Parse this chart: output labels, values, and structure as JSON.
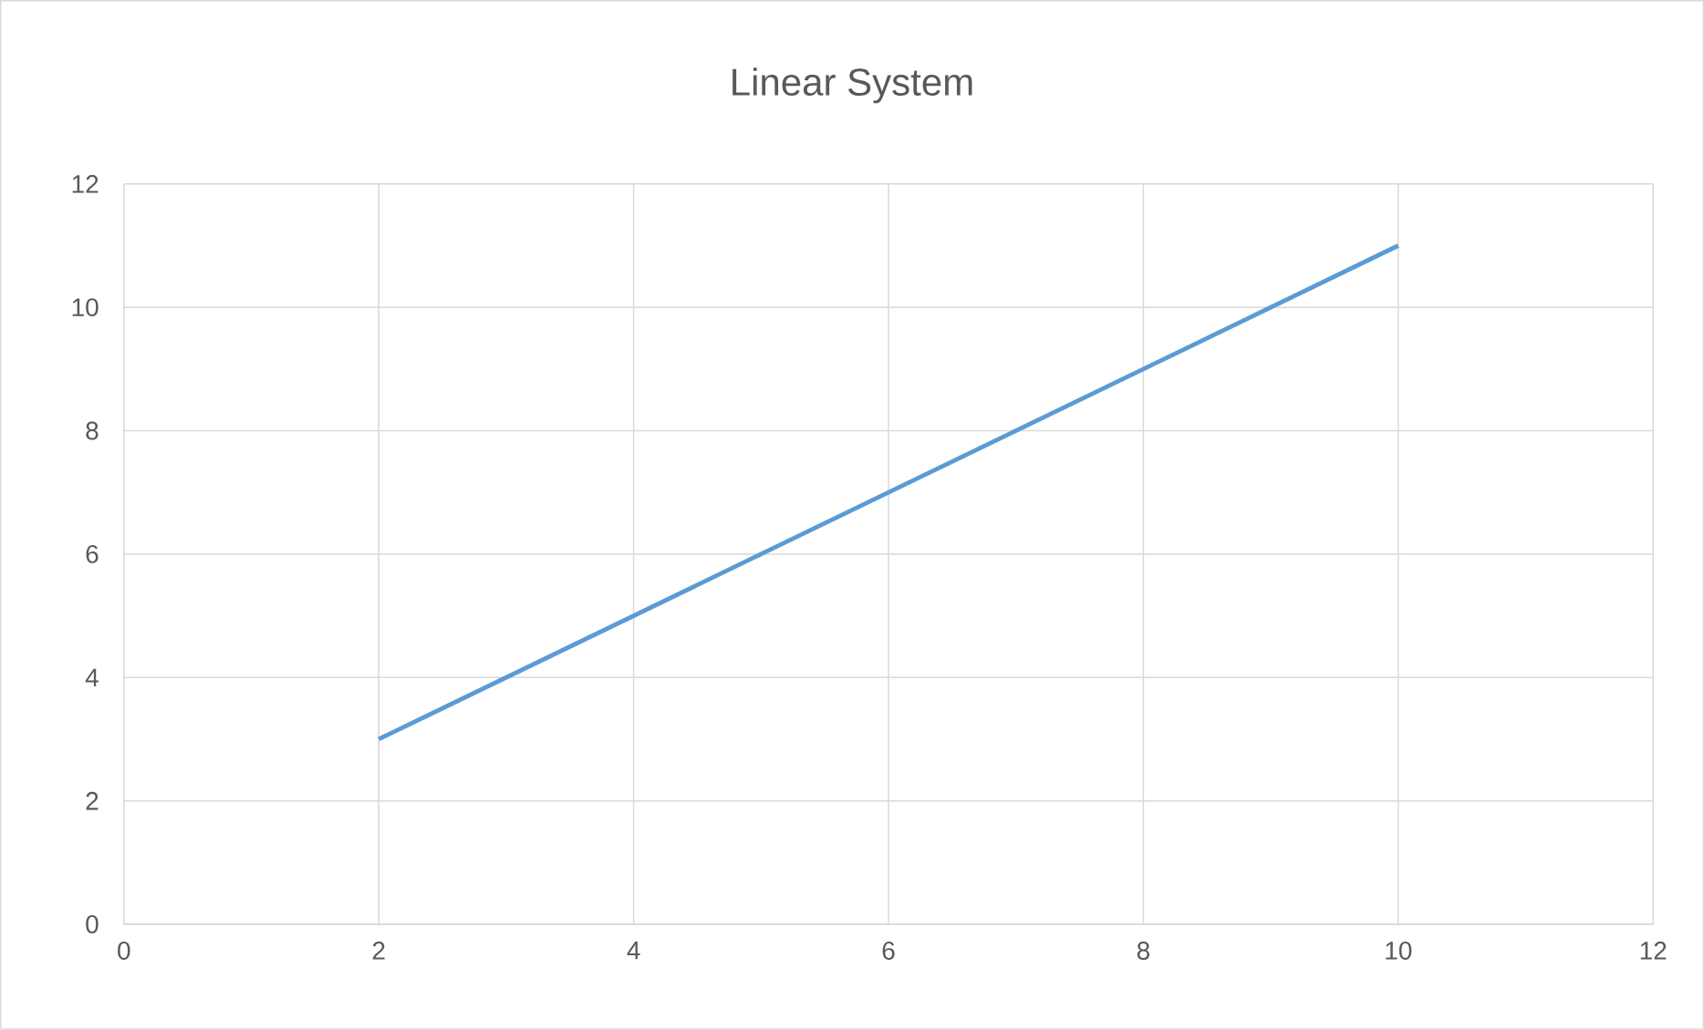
{
  "chart_data": {
    "type": "line",
    "title": "Linear System",
    "x": [
      2,
      10
    ],
    "series": [
      {
        "color": "#5b9bd5",
        "values": [
          3,
          11
        ]
      }
    ],
    "xlim": [
      0,
      12
    ],
    "ylim": [
      0,
      12
    ],
    "xticks": [
      0,
      2,
      4,
      6,
      8,
      10,
      12
    ],
    "yticks": [
      0,
      2,
      4,
      6,
      8,
      10,
      12
    ],
    "grid": true,
    "marker": "none",
    "line_style": "solid"
  }
}
